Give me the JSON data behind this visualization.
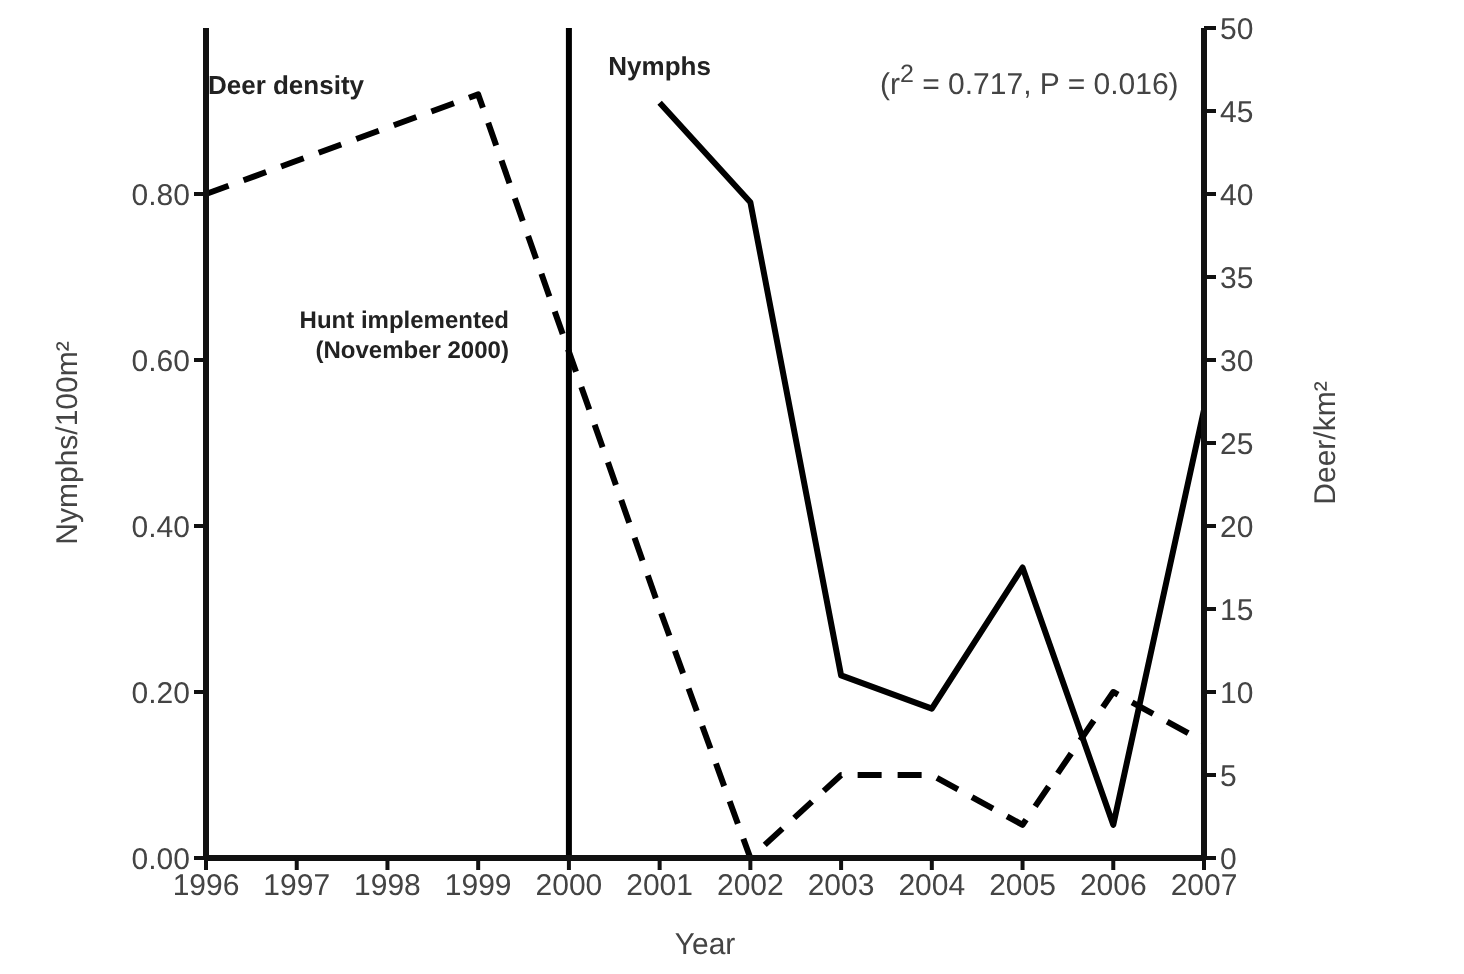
{
  "chart_data": {
    "type": "line",
    "xlabel": "Year",
    "ylabel": "Nymphs/100m²",
    "y2label": "Deer/km²",
    "categories": [
      "1996",
      "1997",
      "1998",
      "1999",
      "2000",
      "2001",
      "2002",
      "2003",
      "2004",
      "2005",
      "2006",
      "2007"
    ],
    "series": [
      {
        "name": "Nymphs",
        "color": "#000000",
        "line_style": "solid",
        "values": [
          null,
          null,
          null,
          null,
          null,
          0.91,
          0.79,
          0.22,
          0.18,
          0.35,
          0.04,
          0.54
        ]
      },
      {
        "name": "Deer density",
        "color": "#000000",
        "line_style": "dashed",
        "axis": "y2",
        "values": [
          40,
          42,
          44,
          46,
          30.5,
          15,
          0,
          5,
          5,
          2,
          10,
          7
        ]
      }
    ],
    "ylim": [
      0,
      1
    ],
    "yticks": [
      {
        "value": 0,
        "label": "0.00"
      },
      {
        "value": 0.2,
        "label": "0.20"
      },
      {
        "value": 0.4,
        "label": "0.40"
      },
      {
        "value": 0.6,
        "label": "0.60"
      },
      {
        "value": 0.8,
        "label": "0.80"
      }
    ],
    "y2lim": [
      0,
      50
    ],
    "y2ticks": [
      0,
      5,
      10,
      15,
      20,
      25,
      30,
      35,
      40,
      45,
      50
    ],
    "ref_lines": [
      {
        "axis": "x",
        "value": "2000",
        "label": "Hunt implemented (November 2000)",
        "color": "#000000"
      }
    ],
    "annotations": [
      "(r$^{2}$ = 0.717, P = 0.016)"
    ],
    "marker": "none",
    "grid": false,
    "legend": false
  }
}
